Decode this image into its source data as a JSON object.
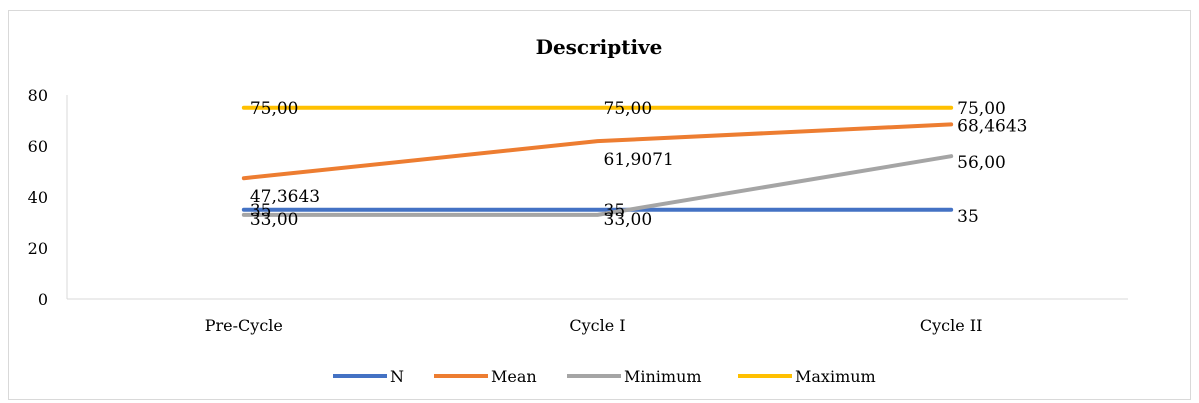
{
  "chart_data": {
    "type": "line",
    "title": "Descriptive",
    "xlabel": "",
    "ylabel": "",
    "categories": [
      "Pre-Cycle",
      "Cycle I",
      "Cycle II"
    ],
    "ylim": [
      0,
      80
    ],
    "yticks": [
      0,
      20,
      40,
      60,
      80
    ],
    "grid": false,
    "legend_position": "bottom",
    "series": [
      {
        "name": "N",
        "color": "#4472c4",
        "values": [
          35,
          35,
          35
        ],
        "labels": [
          "35",
          "35",
          "35"
        ]
      },
      {
        "name": "Mean",
        "color": "#ed7d31",
        "values": [
          47.3643,
          61.9071,
          68.4643
        ],
        "labels": [
          "47,3643",
          "61,9071",
          "68,4643"
        ]
      },
      {
        "name": "Minimum",
        "color": "#a5a5a5",
        "values": [
          33,
          33,
          56
        ],
        "labels": [
          "33,00",
          "33,00",
          "56,00"
        ]
      },
      {
        "name": "Maximum",
        "color": "#ffc000",
        "values": [
          75,
          75,
          75
        ],
        "labels": [
          "75,00",
          "75,00",
          "75,00"
        ]
      }
    ]
  }
}
